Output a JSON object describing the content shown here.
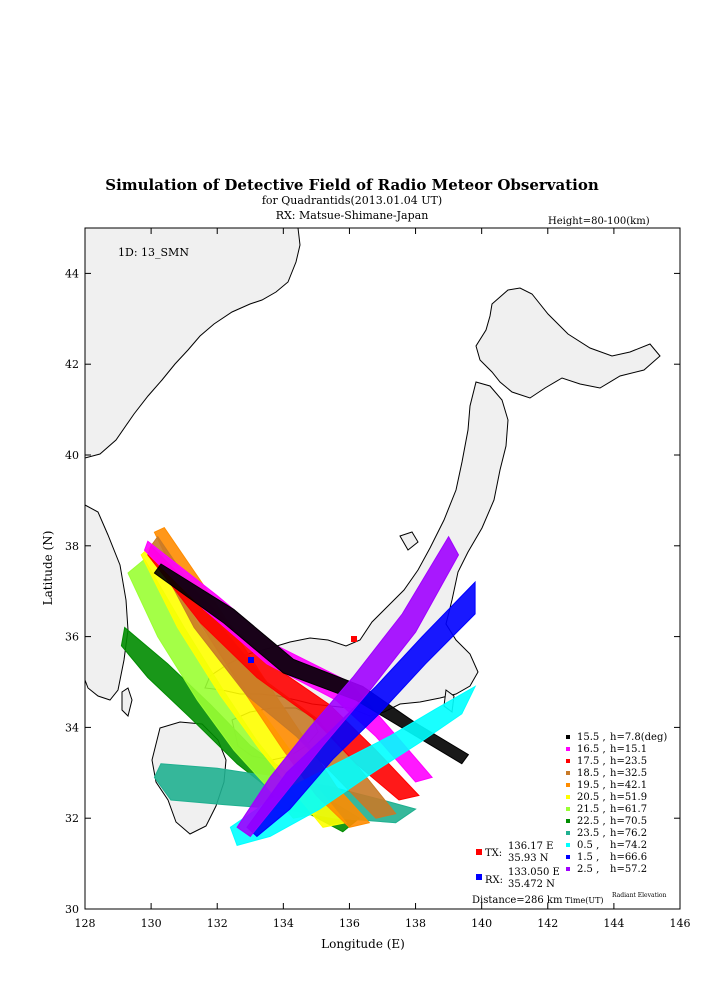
{
  "title": "Simulation of Detective Field of Radio Meteor Observation",
  "subtitle": "for Quadrantids(2013.01.04 UT)",
  "rx_line": "RX: Matsue-Shimane-Japan",
  "height_note": "Height=80-100(km)",
  "id_label": "1D: 13_SMN",
  "axes": {
    "xlabel": "Longitude (E)",
    "ylabel": "Latitude (N)",
    "xlim": [
      128,
      146
    ],
    "ylim": [
      30,
      45
    ],
    "xticks": [
      "128",
      "130",
      "132",
      "134",
      "136",
      "138",
      "140",
      "142",
      "144",
      "146"
    ],
    "yticks": [
      "30",
      "32",
      "34",
      "36",
      "38",
      "40",
      "42",
      "44"
    ]
  },
  "legend": {
    "col_time": "Time(UT)",
    "col_elev": "Radiant Elevation",
    "entries": [
      {
        "time": "15.5",
        "h": "h=7.8(deg)",
        "color": "#000000"
      },
      {
        "time": "16.5",
        "h": "h=15.1",
        "color": "#ff00ff"
      },
      {
        "time": "17.5",
        "h": "h=23.5",
        "color": "#ff0000"
      },
      {
        "time": "18.5",
        "h": "h=32.5",
        "color": "#c87a28"
      },
      {
        "time": "19.5",
        "h": "h=42.1",
        "color": "#ff8c00"
      },
      {
        "time": "20.5",
        "h": "h=51.9",
        "color": "#ffff00"
      },
      {
        "time": "21.5",
        "h": "h=61.7",
        "color": "#9aff33"
      },
      {
        "time": "22.5",
        "h": "h=70.5",
        "color": "#008c00"
      },
      {
        "time": "23.5",
        "h": "h=76.2",
        "color": "#20b090"
      },
      {
        "time": "0.5",
        "h": "h=74.2",
        "color": "#00ffff"
      },
      {
        "time": "1.5",
        "h": "h=66.6",
        "color": "#0000ff"
      },
      {
        "time": "2.5",
        "h": "h=57.2",
        "color": "#a000ff"
      }
    ]
  },
  "tx": {
    "label": "TX:",
    "lon": "136.17 E",
    "lat": "35.93 N",
    "color": "#ff0000"
  },
  "rx": {
    "label": "RX:",
    "lon": "133.050 E",
    "lat": "35.472 N",
    "color": "#0000ff"
  },
  "distance": "Distance=286 km",
  "colors": {
    "land": "#f0f0f0",
    "coast": "#000000"
  }
}
